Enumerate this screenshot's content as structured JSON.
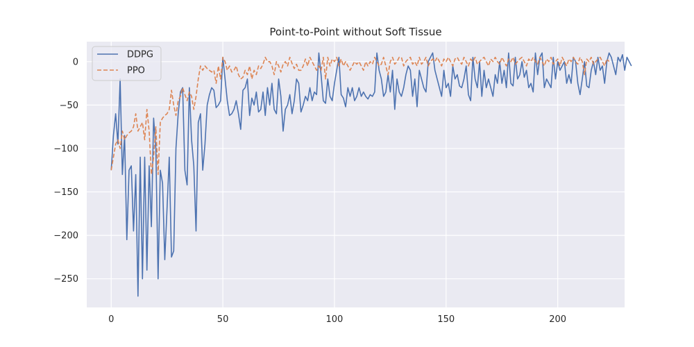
{
  "chart_data": {
    "type": "line",
    "title": "Point-to-Point without Soft Tissue",
    "xlabel": "",
    "ylabel": "",
    "xlim": [
      -10.95,
      229.95
    ],
    "ylim": [
      -283,
      23
    ],
    "xticks": [
      0,
      50,
      100,
      150,
      200
    ],
    "yticks": [
      0,
      -50,
      -100,
      -150,
      -200,
      -250
    ],
    "grid": true,
    "legend_position": "top-left",
    "background_color": "#eaeaf2",
    "series": [
      {
        "name": "DDPG",
        "color": "#4c72b0",
        "linestyle": "solid",
        "values": [
          -125,
          -85,
          -60,
          -95,
          -20,
          -130,
          -85,
          -205,
          -125,
          -120,
          -195,
          -130,
          -270,
          -110,
          -250,
          -110,
          -240,
          -120,
          -190,
          -65,
          -100,
          -250,
          -125,
          -140,
          -228,
          -170,
          -110,
          -225,
          -218,
          -100,
          -60,
          -35,
          -30,
          -125,
          -142,
          -30,
          -90,
          -120,
          -195,
          -70,
          -60,
          -125,
          -95,
          -50,
          -38,
          -30,
          -33,
          -53,
          -50,
          -45,
          5,
          -20,
          -45,
          -62,
          -60,
          -55,
          -45,
          -60,
          -78,
          -33,
          -30,
          -20,
          -62,
          -42,
          -50,
          -35,
          -58,
          -55,
          -35,
          -62,
          -30,
          -50,
          -25,
          -55,
          -60,
          -20,
          -40,
          -80,
          -55,
          -50,
          -38,
          -60,
          -45,
          -20,
          -25,
          -58,
          -50,
          -40,
          -45,
          -30,
          -45,
          -35,
          -38,
          10,
          -15,
          -45,
          -48,
          -20,
          -40,
          -45,
          -25,
          -10,
          5,
          -38,
          -42,
          -52,
          -30,
          -40,
          -30,
          -45,
          -40,
          -30,
          -40,
          -35,
          -40,
          -43,
          -38,
          -40,
          -35,
          10,
          -10,
          -20,
          -40,
          -35,
          -15,
          -35,
          -10,
          -55,
          -20,
          -35,
          -40,
          -30,
          -15,
          -5,
          -10,
          -40,
          -20,
          -52,
          -10,
          -20,
          -30,
          -35,
          0,
          5,
          10,
          -10,
          -20,
          -30,
          -40,
          -10,
          -30,
          -25,
          -40,
          -5,
          -20,
          -15,
          -28,
          -30,
          -20,
          -5,
          -38,
          -45,
          5,
          -20,
          -30,
          0,
          -40,
          -10,
          -30,
          -20,
          -30,
          -40,
          -15,
          -25,
          0,
          -25,
          -10,
          -30,
          10,
          -25,
          -28,
          5,
          -20,
          -15,
          0,
          -18,
          -10,
          -30,
          -25,
          -35,
          10,
          -15,
          5,
          10,
          -30,
          -20,
          -25,
          -30,
          5,
          -20,
          0,
          -10,
          -5,
          0,
          -25,
          -15,
          -25,
          5,
          0,
          -25,
          -38,
          -20,
          0,
          -28,
          -30,
          -10,
          0,
          -15,
          5,
          -10,
          -5,
          -25,
          0,
          10,
          5,
          -5,
          -15,
          5,
          0,
          8,
          -10,
          5,
          0,
          -5
        ]
      },
      {
        "name": "PPO",
        "color": "#dd8452",
        "linestyle": "dashed",
        "values": [
          -125,
          -110,
          -95,
          -90,
          -100,
          -80,
          -90,
          -85,
          -82,
          -80,
          -75,
          -60,
          -80,
          -75,
          -70,
          -90,
          -55,
          -80,
          -130,
          -110,
          -75,
          -130,
          -70,
          -65,
          -62,
          -60,
          -55,
          -33,
          -50,
          -62,
          -45,
          -40,
          -30,
          -38,
          -45,
          -35,
          -40,
          -55,
          -40,
          -20,
          -5,
          -10,
          -5,
          -8,
          -10,
          -12,
          -10,
          -25,
          -5,
          -20,
          5,
          0,
          -10,
          -5,
          -12,
          -10,
          -5,
          -15,
          -20,
          -18,
          -10,
          -15,
          -5,
          -20,
          -10,
          -15,
          -5,
          -8,
          -3,
          5,
          0,
          0,
          -5,
          -15,
          0,
          -5,
          -12,
          -3,
          0,
          -5,
          5,
          -2,
          -8,
          -3,
          -10,
          -10,
          -5,
          3,
          -5,
          5,
          0,
          -5,
          -10,
          -5,
          -10,
          5,
          -20,
          5,
          -5,
          3,
          0,
          5,
          -5,
          3,
          -5,
          0,
          -5,
          -10,
          -5,
          0,
          -3,
          0,
          -5,
          -10,
          0,
          -5,
          0,
          -3,
          5,
          0,
          -5,
          -3,
          5,
          -5,
          -15,
          0,
          5,
          -3,
          0,
          5,
          5,
          -5,
          0,
          3,
          5,
          -3,
          0,
          -5,
          5,
          -3,
          0,
          5,
          -5,
          0,
          3,
          0,
          5,
          0,
          -5,
          3,
          0,
          5,
          0,
          -5,
          3,
          5,
          0,
          -3,
          5,
          0,
          -5,
          3,
          0,
          5,
          -3,
          0,
          3,
          5,
          0,
          -5,
          3,
          0,
          5,
          0,
          -3,
          5,
          0,
          -5,
          3,
          0,
          5,
          -3,
          0,
          3,
          5,
          0,
          -5,
          3,
          0,
          5,
          0,
          -3,
          5,
          0,
          -5,
          3,
          0,
          5,
          -3,
          0,
          3,
          -5,
          5,
          0,
          -5,
          3,
          0,
          5,
          0,
          -3,
          5,
          0,
          -15,
          3,
          0,
          5,
          -3,
          0,
          3,
          5,
          0,
          -5,
          3,
          0
        ]
      }
    ]
  }
}
